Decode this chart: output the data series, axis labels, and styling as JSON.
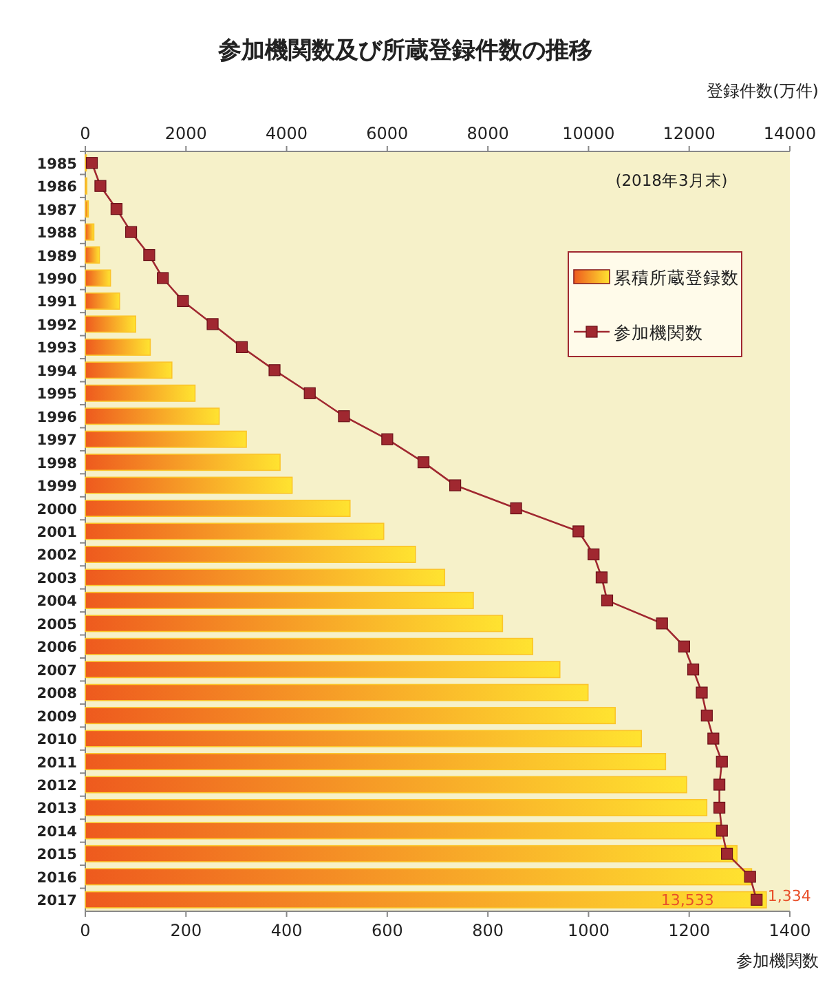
{
  "chart_data": {
    "type": "bar",
    "orientation": "horizontal",
    "title": "参加機関数及び所蔵登録件数の推移",
    "xlabel": "参加機関数",
    "x2label": "登録件数(万件)",
    "categories": [
      "1985",
      "1986",
      "1987",
      "1988",
      "1989",
      "1990",
      "1991",
      "1992",
      "1993",
      "1994",
      "1995",
      "1996",
      "1997",
      "1998",
      "1999",
      "2000",
      "2001",
      "2002",
      "2003",
      "2004",
      "2005",
      "2006",
      "2007",
      "2008",
      "2009",
      "2010",
      "2011",
      "2012",
      "2013",
      "2014",
      "2015",
      "2016",
      "2017"
    ],
    "xlim": [
      0,
      1400
    ],
    "xticks": [
      0,
      200,
      400,
      600,
      800,
      1000,
      1200,
      1400
    ],
    "x2lim": [
      0,
      14000
    ],
    "x2ticks": [
      0,
      2000,
      4000,
      6000,
      8000,
      10000,
      12000,
      14000
    ],
    "annotations": [
      "(2018年3月末)"
    ],
    "legend": "top right",
    "marker": "square",
    "grid": false,
    "series": [
      {
        "name": "累積所蔵登録数",
        "axis": "x2",
        "color": "#fbc52a",
        "values": [
          20,
          30,
          60,
          170,
          280,
          500,
          680,
          1000,
          1290,
          1720,
          2180,
          2660,
          3200,
          3870,
          4110,
          5260,
          5930,
          6560,
          7140,
          7710,
          8290,
          8890,
          9430,
          9990,
          10530,
          11050,
          11530,
          11950,
          12350,
          12630,
          12950,
          13240,
          13533
        ],
        "value_labels": [
          null,
          null,
          null,
          null,
          null,
          null,
          null,
          null,
          null,
          null,
          null,
          null,
          null,
          null,
          null,
          null,
          null,
          null,
          null,
          null,
          null,
          null,
          null,
          null,
          null,
          null,
          null,
          null,
          null,
          null,
          null,
          null,
          "13,533"
        ]
      },
      {
        "name": "参加機関数",
        "type": "line",
        "color": "#a02830",
        "values": [
          13,
          30,
          62,
          91,
          127,
          154,
          194,
          253,
          311,
          376,
          446,
          514,
          600,
          672,
          735,
          856,
          980,
          1010,
          1026,
          1037,
          1146,
          1190,
          1208,
          1225,
          1235,
          1248,
          1265,
          1260,
          1260,
          1265,
          1275,
          1321,
          1334
        ],
        "value_labels": [
          null,
          null,
          null,
          null,
          null,
          null,
          null,
          null,
          null,
          null,
          null,
          null,
          null,
          null,
          null,
          null,
          null,
          null,
          null,
          null,
          null,
          null,
          null,
          null,
          null,
          null,
          null,
          null,
          null,
          null,
          null,
          null,
          "1,334"
        ]
      }
    ]
  }
}
